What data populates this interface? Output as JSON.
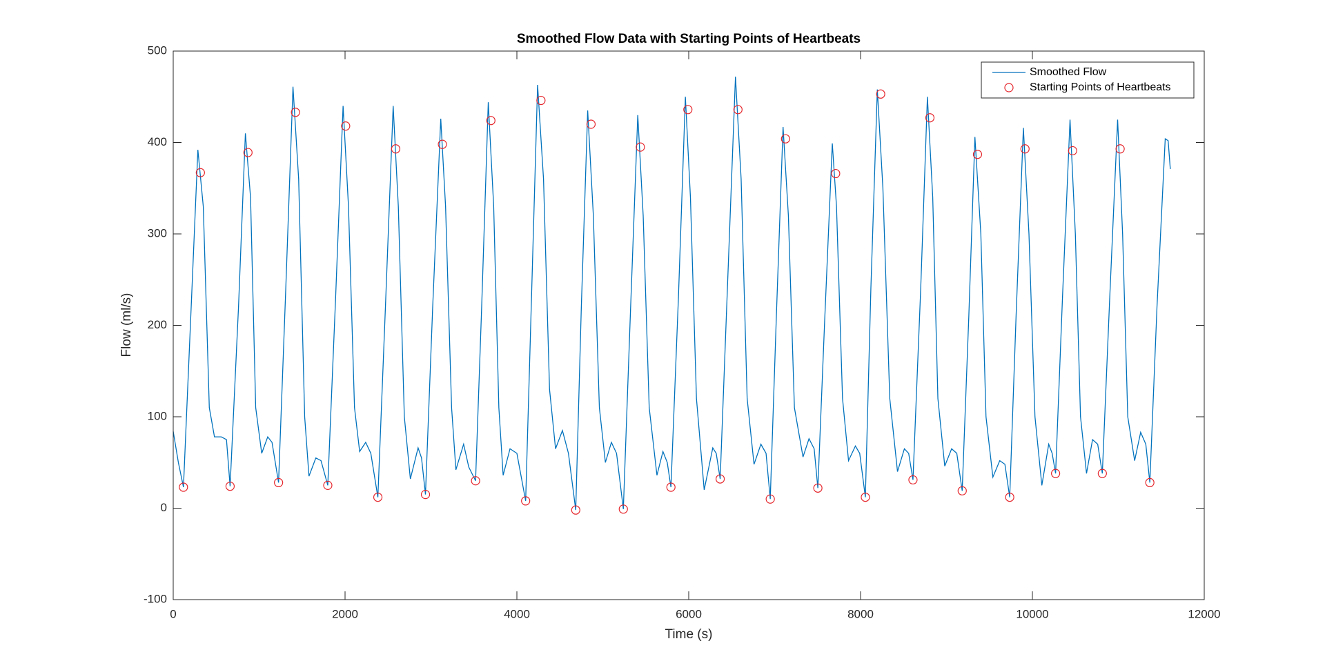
{
  "chart_data": {
    "type": "line",
    "title": "Smoothed Flow Data with Starting Points of Heartbeats",
    "x_label": "Time (s)",
    "y_label": "Flow (ml/s)",
    "xlim": [
      0,
      12000
    ],
    "xticks": [
      0,
      2000,
      4000,
      6000,
      8000,
      10000,
      12000
    ],
    "ylim": [
      -100,
      500
    ],
    "yticks": [
      -100,
      0,
      100,
      200,
      300,
      400,
      500
    ],
    "grid": false,
    "legend": "northeast",
    "series": [
      {
        "name": "Smoothed Flow",
        "color": "#0072BD",
        "style": "line",
        "x": [
          0,
          60,
          119,
          200,
          287,
          350,
          420,
          480,
          560,
          620,
          662,
          760,
          840,
          900,
          960,
          1030,
          1100,
          1150,
          1226,
          1310,
          1394,
          1460,
          1530,
          1580,
          1660,
          1720,
          1799,
          1890,
          1977,
          2040,
          2110,
          2170,
          2240,
          2300,
          2382,
          2470,
          2560,
          2620,
          2690,
          2760,
          2850,
          2890,
          2936,
          3020,
          3114,
          3170,
          3240,
          3290,
          3380,
          3440,
          3519,
          3590,
          3667,
          3730,
          3790,
          3840,
          3920,
          4000,
          4102,
          4170,
          4241,
          4310,
          4380,
          4450,
          4530,
          4600,
          4685,
          4750,
          4824,
          4890,
          4960,
          5030,
          5100,
          5160,
          5239,
          5320,
          5407,
          5470,
          5540,
          5630,
          5700,
          5750,
          5793,
          5880,
          5961,
          6020,
          6090,
          6180,
          6280,
          6320,
          6366,
          6450,
          6544,
          6610,
          6680,
          6760,
          6840,
          6900,
          6949,
          7020,
          7098,
          7160,
          7230,
          7330,
          7400,
          7460,
          7503,
          7580,
          7671,
          7720,
          7790,
          7860,
          7940,
          7990,
          8056,
          8120,
          8195,
          8260,
          8340,
          8430,
          8510,
          8560,
          8610,
          8700,
          8778,
          8840,
          8900,
          8980,
          9060,
          9120,
          9183,
          9260,
          9331,
          9400,
          9460,
          9540,
          9620,
          9680,
          9736,
          9810,
          9895,
          9960,
          10030,
          10110,
          10190,
          10230,
          10270,
          10350,
          10438,
          10500,
          10560,
          10630,
          10700,
          10760,
          10814,
          10900,
          10992,
          11050,
          11110,
          11190,
          11260,
          11320,
          11367,
          11450,
          11546,
          11580,
          11605
        ],
        "values": [
          84,
          50,
          23,
          200,
          392,
          330,
          110,
          78,
          78,
          75,
          24,
          220,
          410,
          340,
          110,
          60,
          78,
          72,
          28,
          240,
          461,
          360,
          100,
          35,
          55,
          52,
          25,
          230,
          440,
          330,
          110,
          62,
          72,
          60,
          12,
          220,
          440,
          330,
          100,
          32,
          66,
          55,
          15,
          220,
          426,
          330,
          110,
          42,
          70,
          45,
          30,
          220,
          444,
          330,
          110,
          36,
          65,
          60,
          8,
          230,
          463,
          360,
          130,
          65,
          85,
          60,
          -2,
          220,
          435,
          320,
          110,
          50,
          72,
          60,
          -1,
          210,
          430,
          320,
          110,
          36,
          62,
          50,
          23,
          230,
          450,
          340,
          120,
          20,
          66,
          60,
          32,
          240,
          472,
          360,
          120,
          48,
          70,
          60,
          10,
          210,
          417,
          320,
          110,
          56,
          76,
          65,
          22,
          200,
          399,
          330,
          120,
          52,
          68,
          60,
          12,
          240,
          458,
          350,
          120,
          40,
          65,
          60,
          31,
          240,
          450,
          340,
          120,
          46,
          65,
          60,
          19,
          210,
          406,
          300,
          100,
          34,
          52,
          48,
          12,
          210,
          416,
          300,
          100,
          25,
          70,
          60,
          38,
          230,
          425,
          300,
          100,
          38,
          75,
          70,
          38,
          230,
          425,
          300,
          100,
          52,
          83,
          70,
          28,
          220,
          404,
          402,
          371
        ]
      },
      {
        "name": "Starting Points of Heartbeats",
        "color": "#E5252B",
        "style": "markers",
        "x": [
          119,
          316,
          662,
          870,
          1226,
          1423,
          1799,
          2007,
          2382,
          2590,
          2936,
          3133,
          3519,
          3697,
          4102,
          4280,
          4685,
          4863,
          5239,
          5437,
          5793,
          5990,
          6366,
          6573,
          6949,
          7127,
          7503,
          7710,
          8056,
          8234,
          8610,
          8807,
          9183,
          9361,
          9736,
          9914,
          10270,
          10468,
          10814,
          11021,
          11367
        ],
        "values": [
          23,
          367,
          24,
          389,
          28,
          433,
          25,
          418,
          12,
          393,
          15,
          398,
          30,
          424,
          8,
          446,
          -2,
          420,
          -1,
          395,
          23,
          436,
          32,
          436,
          10,
          404,
          22,
          366,
          12,
          453,
          31,
          427,
          19,
          387,
          12,
          393,
          38,
          391,
          38,
          393,
          28
        ]
      }
    ]
  }
}
